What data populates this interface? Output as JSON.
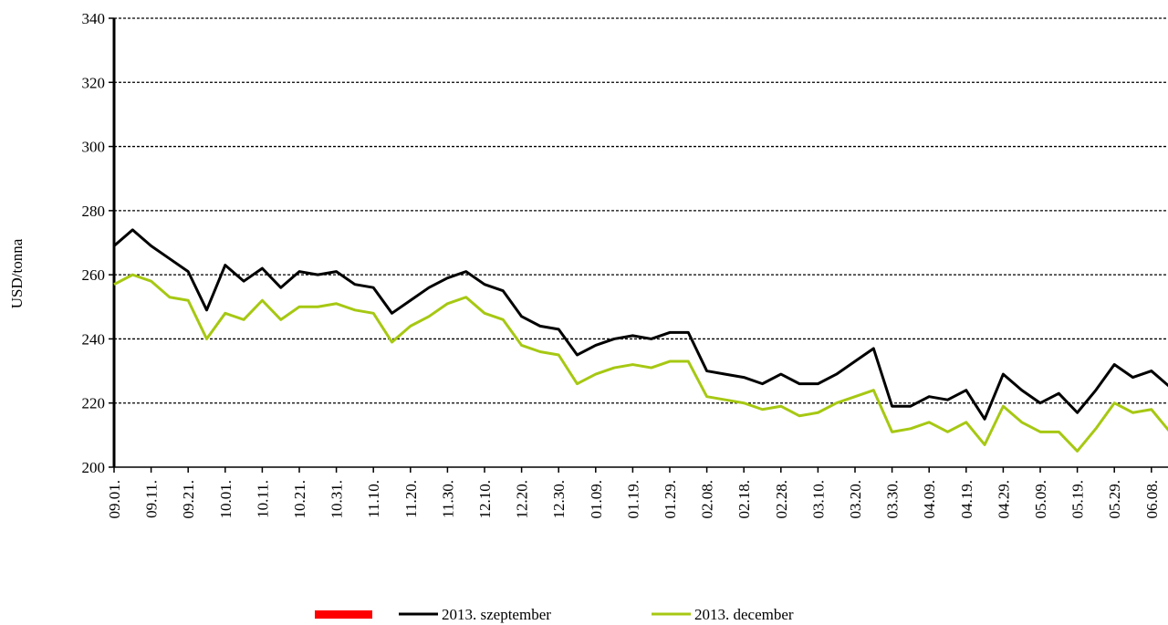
{
  "chart_data": {
    "type": "line",
    "y_label": "USD/tonna",
    "categories": [
      "09.01.",
      null,
      "09.11.",
      null,
      "09.21.",
      null,
      "10.01.",
      null,
      "10.11.",
      null,
      "10.21.",
      null,
      "10.31.",
      null,
      "11.10.",
      null,
      "11.20.",
      null,
      "11.30.",
      null,
      "12.10.",
      null,
      "12.20.",
      null,
      "12.30.",
      null,
      "01.09.",
      null,
      "01.19.",
      null,
      "01.29.",
      null,
      "02.08.",
      null,
      "02.18.",
      null,
      "02.28.",
      null,
      "03.10.",
      null,
      "03.20.",
      null,
      "03.30.",
      null,
      "04.09.",
      null,
      "04.19.",
      null,
      "04.29.",
      null,
      "05.09.",
      null,
      "05.19.",
      null,
      "05.29.",
      null,
      "06.08.",
      null
    ],
    "series": [
      {
        "name": "2013. szeptember",
        "color": "#000000",
        "values": [
          269,
          274,
          269,
          265,
          261,
          249,
          263,
          258,
          262,
          256,
          261,
          260,
          261,
          257,
          256,
          248,
          252,
          256,
          259,
          261,
          257,
          255,
          247,
          244,
          243,
          235,
          238,
          240,
          241,
          240,
          242,
          242,
          230,
          229,
          228,
          226,
          229,
          226,
          226,
          229,
          233,
          237,
          219,
          219,
          222,
          221,
          224,
          215,
          229,
          224,
          220,
          223,
          217,
          224,
          232,
          228,
          230,
          225
        ]
      },
      {
        "name": "2013. december",
        "color": "#a6c812",
        "values": [
          257,
          260,
          258,
          253,
          252,
          240,
          248,
          246,
          252,
          246,
          250,
          250,
          251,
          249,
          248,
          239,
          244,
          247,
          251,
          253,
          248,
          246,
          238,
          236,
          235,
          226,
          229,
          231,
          232,
          231,
          233,
          233,
          222,
          221,
          220,
          218,
          219,
          216,
          217,
          220,
          222,
          224,
          211,
          212,
          214,
          211,
          214,
          207,
          219,
          214,
          211,
          211,
          205,
          212,
          220,
          217,
          218,
          211
        ]
      }
    ],
    "ylim": [
      200,
      340
    ],
    "yticks": [
      200,
      220,
      240,
      260,
      280,
      300,
      320,
      340
    ],
    "grid": true
  }
}
